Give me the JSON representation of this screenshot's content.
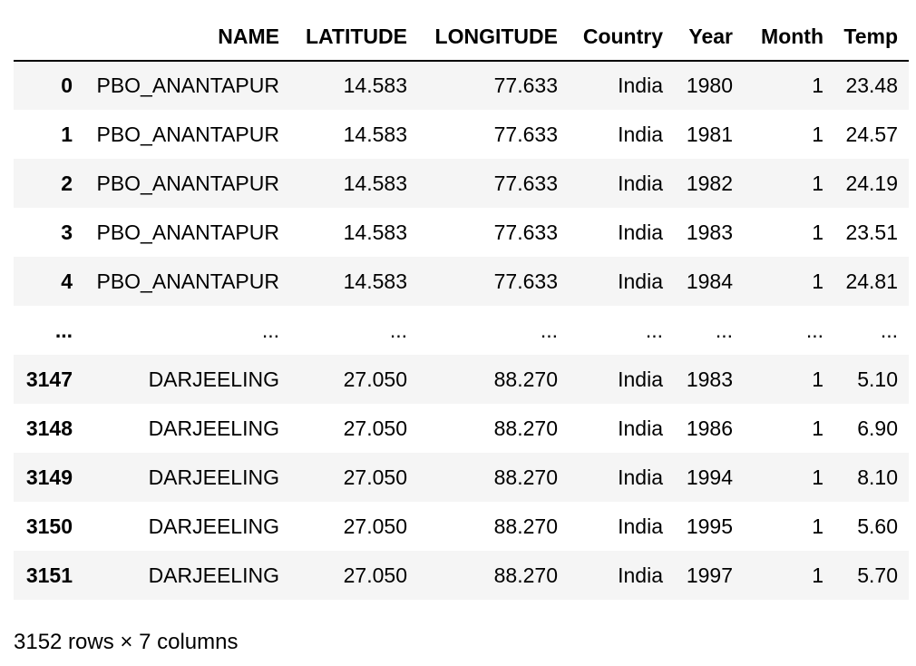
{
  "table": {
    "index_header": "",
    "columns": [
      "NAME",
      "LATITUDE",
      "LONGITUDE",
      "Country",
      "Year",
      "Month",
      "Temp"
    ],
    "rows": [
      {
        "index": "0",
        "cells": [
          "PBO_ANANTAPUR",
          "14.583",
          "77.633",
          "India",
          "1980",
          "1",
          "23.48"
        ]
      },
      {
        "index": "1",
        "cells": [
          "PBO_ANANTAPUR",
          "14.583",
          "77.633",
          "India",
          "1981",
          "1",
          "24.57"
        ]
      },
      {
        "index": "2",
        "cells": [
          "PBO_ANANTAPUR",
          "14.583",
          "77.633",
          "India",
          "1982",
          "1",
          "24.19"
        ]
      },
      {
        "index": "3",
        "cells": [
          "PBO_ANANTAPUR",
          "14.583",
          "77.633",
          "India",
          "1983",
          "1",
          "23.51"
        ]
      },
      {
        "index": "4",
        "cells": [
          "PBO_ANANTAPUR",
          "14.583",
          "77.633",
          "India",
          "1984",
          "1",
          "24.81"
        ]
      },
      {
        "index": "...",
        "cells": [
          "...",
          "...",
          "...",
          "...",
          "...",
          "...",
          "..."
        ]
      },
      {
        "index": "3147",
        "cells": [
          "DARJEELING",
          "27.050",
          "88.270",
          "India",
          "1983",
          "1",
          "5.10"
        ]
      },
      {
        "index": "3148",
        "cells": [
          "DARJEELING",
          "27.050",
          "88.270",
          "India",
          "1986",
          "1",
          "6.90"
        ]
      },
      {
        "index": "3149",
        "cells": [
          "DARJEELING",
          "27.050",
          "88.270",
          "India",
          "1994",
          "1",
          "8.10"
        ]
      },
      {
        "index": "3150",
        "cells": [
          "DARJEELING",
          "27.050",
          "88.270",
          "India",
          "1995",
          "1",
          "5.60"
        ]
      },
      {
        "index": "3151",
        "cells": [
          "DARJEELING",
          "27.050",
          "88.270",
          "India",
          "1997",
          "1",
          "5.70"
        ]
      }
    ]
  },
  "footer": {
    "shape_text": "3152 rows × 7 columns"
  },
  "colors": {
    "row_stripe": "#f5f5f5",
    "row_plain": "#ffffff",
    "text": "#000000",
    "header_rule": "#000000"
  }
}
